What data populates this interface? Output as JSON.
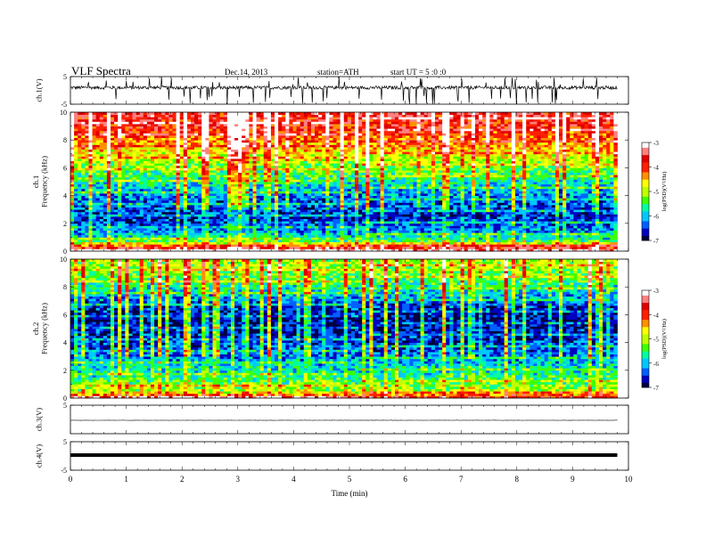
{
  "header": {
    "title": "VLF  Spectra",
    "date": "Dec.14, 2013",
    "station": "station=ATH",
    "start": "start  UT =   5  :0  :0"
  },
  "colors": {
    "spectrum": [
      "#000040",
      "#0000c0",
      "#0060ff",
      "#00c8ff",
      "#00ffa0",
      "#40ff00",
      "#c0ff00",
      "#ffff00",
      "#ff9000",
      "#ff2000",
      "#e00000",
      "#ff8080",
      "#ffffff"
    ]
  },
  "chart_data": [
    {
      "type": "line",
      "panel": "ch1_waveform",
      "ylabel": "ch.1(V)",
      "yticks": [
        "5",
        "-5"
      ],
      "ylim": [
        -5,
        5
      ],
      "xlim": [
        0,
        10
      ],
      "data_end": 9.8,
      "baseline": 1.0,
      "noise_amplitude": 0.6,
      "spikes": "frequent impulsive spikes reaching about ±5 V"
    },
    {
      "type": "heatmap",
      "panel": "ch1_spectrogram",
      "ylabel": "ch.1\nFrequency  (kHz)",
      "yticks": [
        "0",
        "2",
        "4",
        "6",
        "8",
        "10"
      ],
      "ylim": [
        0,
        10
      ],
      "xlim": [
        0,
        10
      ],
      "data_end": 9.8,
      "colorbar": {
        "label": "log(PSD)(V²/Hz)",
        "ticks": [
          "-3",
          "-4",
          "-5",
          "-6",
          "-7"
        ],
        "range": [
          -7,
          -3
        ]
      },
      "profile_logpsd_by_freq": [
        [
          0.0,
          -3.2
        ],
        [
          0.3,
          -3.8
        ],
        [
          0.8,
          -5.6
        ],
        [
          1.5,
          -6.2
        ],
        [
          2.5,
          -6.6
        ],
        [
          3.5,
          -6.4
        ],
        [
          4.5,
          -6.0
        ],
        [
          5.5,
          -5.5
        ],
        [
          6.5,
          -5.0
        ],
        [
          7.5,
          -4.5
        ],
        [
          8.5,
          -4.0
        ],
        [
          10.0,
          -3.6
        ]
      ],
      "line_shift_min": 5.2
    },
    {
      "type": "heatmap",
      "panel": "ch2_spectrogram",
      "ylabel": "ch.2\nFrequency  (kHz)",
      "yticks": [
        "0",
        "2",
        "4",
        "6",
        "8",
        "10"
      ],
      "ylim": [
        0,
        10
      ],
      "xlim": [
        0,
        10
      ],
      "data_end": 9.8,
      "colorbar": {
        "label": "log(PSD)(V²/Hz)",
        "ticks": [
          "-3",
          "-4",
          "-5",
          "-6",
          "-7"
        ],
        "range": [
          -7,
          -3
        ]
      },
      "profile_logpsd_by_freq": [
        [
          0.0,
          -3.6
        ],
        [
          0.5,
          -5.0
        ],
        [
          1.5,
          -5.6
        ],
        [
          2.5,
          -6.0
        ],
        [
          3.5,
          -6.4
        ],
        [
          4.5,
          -6.6
        ],
        [
          5.5,
          -6.8
        ],
        [
          6.5,
          -6.6
        ],
        [
          7.5,
          -6.0
        ],
        [
          8.5,
          -5.4
        ],
        [
          10.0,
          -5.0
        ]
      ],
      "line_shift_min": 5.2
    },
    {
      "type": "line",
      "panel": "ch3_waveform",
      "ylabel": "ch.3(V)",
      "yticks": [
        "5"
      ],
      "ylim": [
        -5,
        5
      ],
      "xlim": [
        0,
        10
      ],
      "data_end": 9.8,
      "baseline": -0.3,
      "noise_amplitude": 0.05
    },
    {
      "type": "line",
      "panel": "ch4_waveform",
      "ylabel": "ch.4(V)",
      "yticks": [
        "5",
        "-5"
      ],
      "ylim": [
        -5,
        5
      ],
      "xlim": [
        0,
        10
      ],
      "data_end": 9.8,
      "baseline": 0.3,
      "noise_amplitude": 0.25,
      "xlabel": "Time  (min)",
      "xticks": [
        "0",
        "1",
        "2",
        "3",
        "4",
        "5",
        "6",
        "7",
        "8",
        "9",
        "10"
      ]
    }
  ]
}
